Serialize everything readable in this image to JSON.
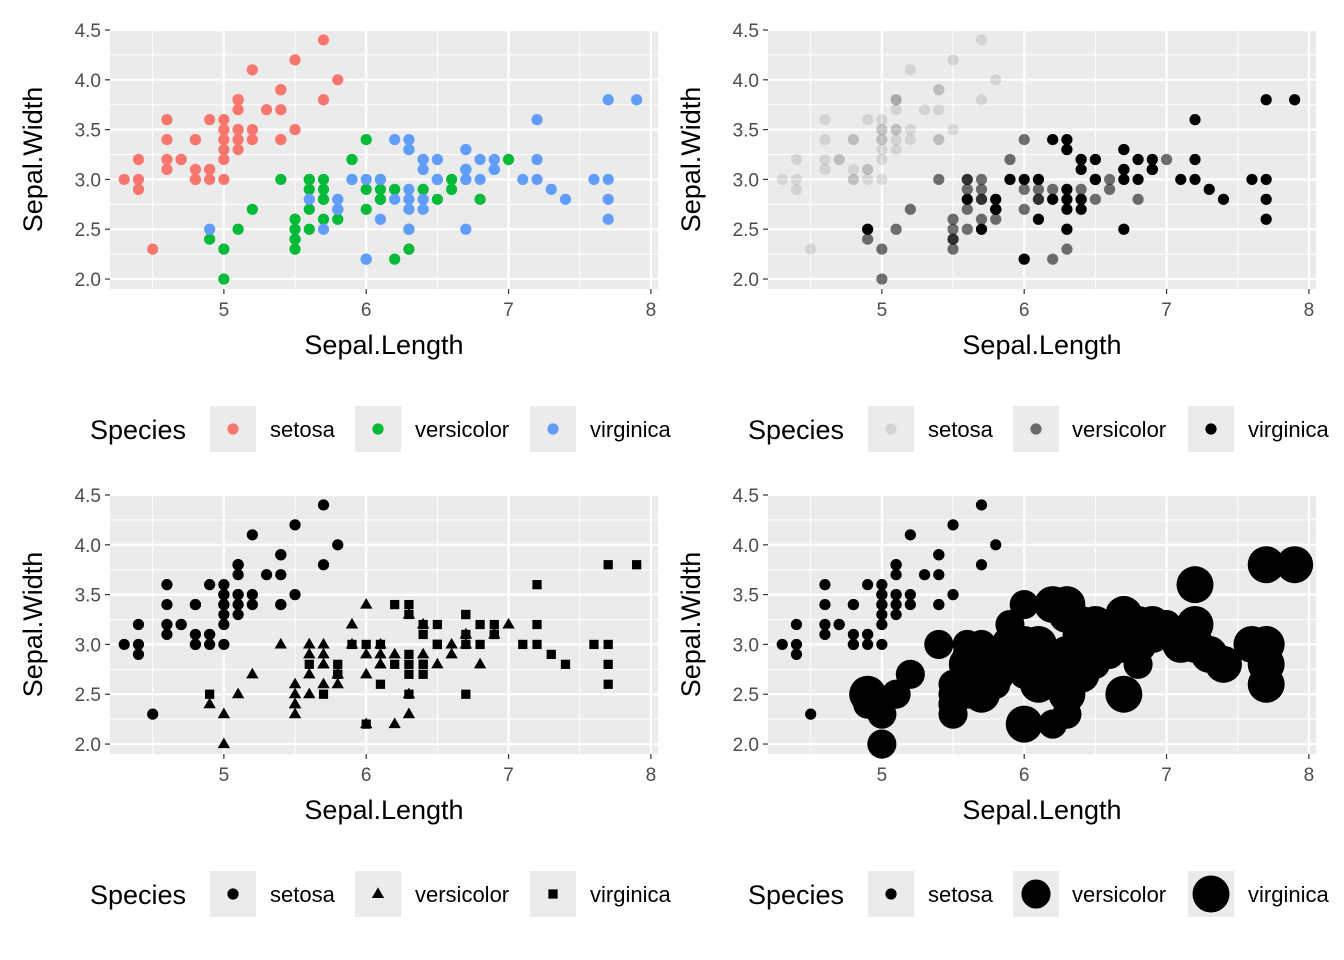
{
  "chart_data": [
    {
      "type": "scatter",
      "panel": "top-left",
      "aesthetic": "color",
      "xlabel": "Sepal.Length",
      "ylabel": "Sepal.Width",
      "xlim": [
        4.2,
        8.05
      ],
      "ylim": [
        1.9,
        4.5
      ],
      "x_ticks": [
        "5",
        "6",
        "7",
        "8"
      ],
      "y_ticks": [
        "2.0",
        "2.5",
        "3.0",
        "3.5",
        "4.0",
        "4.5"
      ],
      "grid": true,
      "legend": {
        "title": "Species",
        "position": "bottom",
        "entries": [
          "setosa",
          "versicolor",
          "virginica"
        ]
      },
      "series_styles": [
        {
          "name": "setosa",
          "color": "#F8766D",
          "shape": "circle",
          "opacity": 1,
          "size": 1
        },
        {
          "name": "versicolor",
          "color": "#00BA38",
          "shape": "circle",
          "opacity": 1,
          "size": 1
        },
        {
          "name": "virginica",
          "color": "#619CFF",
          "shape": "circle",
          "opacity": 1,
          "size": 1
        }
      ]
    },
    {
      "type": "scatter",
      "panel": "top-right",
      "aesthetic": "alpha",
      "xlabel": "Sepal.Length",
      "ylabel": "Sepal.Width",
      "xlim": [
        4.2,
        8.05
      ],
      "ylim": [
        1.9,
        4.5
      ],
      "x_ticks": [
        "5",
        "6",
        "7",
        "8"
      ],
      "y_ticks": [
        "2.0",
        "2.5",
        "3.0",
        "3.5",
        "4.0",
        "4.5"
      ],
      "grid": true,
      "legend": {
        "title": "Species",
        "position": "bottom",
        "entries": [
          "setosa",
          "versicolor",
          "virginica"
        ]
      },
      "series_styles": [
        {
          "name": "setosa",
          "color": "#000000",
          "shape": "circle",
          "opacity": 0.1,
          "size": 1
        },
        {
          "name": "versicolor",
          "color": "#000000",
          "shape": "circle",
          "opacity": 0.55,
          "size": 1
        },
        {
          "name": "virginica",
          "color": "#000000",
          "shape": "circle",
          "opacity": 1,
          "size": 1
        }
      ]
    },
    {
      "type": "scatter",
      "panel": "bottom-left",
      "aesthetic": "shape",
      "xlabel": "Sepal.Length",
      "ylabel": "Sepal.Width",
      "xlim": [
        4.2,
        8.05
      ],
      "ylim": [
        1.9,
        4.5
      ],
      "x_ticks": [
        "5",
        "6",
        "7",
        "8"
      ],
      "y_ticks": [
        "2.0",
        "2.5",
        "3.0",
        "3.5",
        "4.0",
        "4.5"
      ],
      "grid": true,
      "legend": {
        "title": "Species",
        "position": "bottom",
        "entries": [
          "setosa",
          "versicolor",
          "virginica"
        ]
      },
      "series_styles": [
        {
          "name": "setosa",
          "color": "#000000",
          "shape": "circle",
          "opacity": 1,
          "size": 1
        },
        {
          "name": "versicolor",
          "color": "#000000",
          "shape": "triangle",
          "opacity": 1,
          "size": 1
        },
        {
          "name": "virginica",
          "color": "#000000",
          "shape": "square",
          "opacity": 1,
          "size": 1
        }
      ]
    },
    {
      "type": "scatter",
      "panel": "bottom-right",
      "aesthetic": "size",
      "xlabel": "Sepal.Length",
      "ylabel": "Sepal.Width",
      "xlim": [
        4.2,
        8.05
      ],
      "ylim": [
        1.9,
        4.5
      ],
      "x_ticks": [
        "5",
        "6",
        "7",
        "8"
      ],
      "y_ticks": [
        "2.0",
        "2.5",
        "3.0",
        "3.5",
        "4.0",
        "4.5"
      ],
      "grid": true,
      "legend": {
        "title": "Species",
        "position": "bottom",
        "entries": [
          "setosa",
          "versicolor",
          "virginica"
        ]
      },
      "series_styles": [
        {
          "name": "setosa",
          "color": "#000000",
          "shape": "circle",
          "opacity": 1,
          "size": 1
        },
        {
          "name": "versicolor",
          "color": "#000000",
          "shape": "circle",
          "opacity": 1,
          "size": 2.6
        },
        {
          "name": "virginica",
          "color": "#000000",
          "shape": "circle",
          "opacity": 1,
          "size": 3.3
        }
      ]
    }
  ],
  "series": [
    {
      "name": "setosa",
      "points": [
        [
          5.1,
          3.5
        ],
        [
          4.9,
          3.0
        ],
        [
          4.7,
          3.2
        ],
        [
          4.6,
          3.1
        ],
        [
          5.0,
          3.6
        ],
        [
          5.4,
          3.9
        ],
        [
          4.6,
          3.4
        ],
        [
          5.0,
          3.4
        ],
        [
          4.4,
          2.9
        ],
        [
          4.9,
          3.1
        ],
        [
          5.4,
          3.7
        ],
        [
          4.8,
          3.4
        ],
        [
          4.8,
          3.0
        ],
        [
          4.3,
          3.0
        ],
        [
          5.8,
          4.0
        ],
        [
          5.7,
          4.4
        ],
        [
          5.4,
          3.9
        ],
        [
          5.1,
          3.5
        ],
        [
          5.7,
          3.8
        ],
        [
          5.1,
          3.8
        ],
        [
          5.4,
          3.4
        ],
        [
          5.1,
          3.7
        ],
        [
          4.6,
          3.6
        ],
        [
          5.1,
          3.3
        ],
        [
          4.8,
          3.4
        ],
        [
          5.0,
          3.0
        ],
        [
          5.0,
          3.4
        ],
        [
          5.2,
          3.5
        ],
        [
          5.2,
          3.4
        ],
        [
          4.7,
          3.2
        ],
        [
          4.8,
          3.1
        ],
        [
          5.4,
          3.4
        ],
        [
          5.2,
          4.1
        ],
        [
          5.5,
          4.2
        ],
        [
          4.9,
          3.1
        ],
        [
          5.0,
          3.2
        ],
        [
          5.5,
          3.5
        ],
        [
          4.9,
          3.6
        ],
        [
          4.4,
          3.0
        ],
        [
          5.1,
          3.4
        ],
        [
          5.0,
          3.5
        ],
        [
          4.5,
          2.3
        ],
        [
          4.4,
          3.2
        ],
        [
          5.0,
          3.5
        ],
        [
          5.1,
          3.8
        ],
        [
          4.8,
          3.0
        ],
        [
          5.1,
          3.8
        ],
        [
          4.6,
          3.2
        ],
        [
          5.3,
          3.7
        ],
        [
          5.0,
          3.3
        ]
      ]
    },
    {
      "name": "versicolor",
      "points": [
        [
          7.0,
          3.2
        ],
        [
          6.4,
          3.2
        ],
        [
          6.9,
          3.1
        ],
        [
          5.5,
          2.3
        ],
        [
          6.5,
          2.8
        ],
        [
          5.7,
          2.8
        ],
        [
          6.3,
          3.3
        ],
        [
          4.9,
          2.4
        ],
        [
          6.6,
          2.9
        ],
        [
          5.2,
          2.7
        ],
        [
          5.0,
          2.0
        ],
        [
          5.9,
          3.0
        ],
        [
          6.0,
          2.2
        ],
        [
          6.1,
          2.9
        ],
        [
          5.6,
          2.9
        ],
        [
          6.7,
          3.1
        ],
        [
          5.6,
          3.0
        ],
        [
          5.8,
          2.7
        ],
        [
          6.2,
          2.2
        ],
        [
          5.6,
          2.5
        ],
        [
          5.9,
          3.2
        ],
        [
          6.1,
          2.8
        ],
        [
          6.3,
          2.5
        ],
        [
          6.1,
          2.8
        ],
        [
          6.4,
          2.9
        ],
        [
          6.6,
          3.0
        ],
        [
          6.8,
          2.8
        ],
        [
          6.7,
          3.0
        ],
        [
          6.0,
          2.9
        ],
        [
          5.7,
          2.6
        ],
        [
          5.5,
          2.4
        ],
        [
          5.5,
          2.4
        ],
        [
          5.8,
          2.7
        ],
        [
          6.0,
          2.7
        ],
        [
          5.4,
          3.0
        ],
        [
          6.0,
          3.4
        ],
        [
          6.7,
          3.1
        ],
        [
          6.3,
          2.3
        ],
        [
          5.6,
          3.0
        ],
        [
          5.5,
          2.5
        ],
        [
          5.5,
          2.6
        ],
        [
          6.1,
          3.0
        ],
        [
          5.8,
          2.6
        ],
        [
          5.0,
          2.3
        ],
        [
          5.6,
          2.7
        ],
        [
          5.7,
          3.0
        ],
        [
          5.7,
          2.9
        ],
        [
          6.2,
          2.9
        ],
        [
          5.1,
          2.5
        ],
        [
          5.7,
          2.8
        ]
      ]
    },
    {
      "name": "virginica",
      "points": [
        [
          6.3,
          3.3
        ],
        [
          5.8,
          2.7
        ],
        [
          7.1,
          3.0
        ],
        [
          6.3,
          2.9
        ],
        [
          6.5,
          3.0
        ],
        [
          7.6,
          3.0
        ],
        [
          4.9,
          2.5
        ],
        [
          7.3,
          2.9
        ],
        [
          6.7,
          2.5
        ],
        [
          7.2,
          3.6
        ],
        [
          6.5,
          3.2
        ],
        [
          6.4,
          2.7
        ],
        [
          6.8,
          3.0
        ],
        [
          5.7,
          2.5
        ],
        [
          5.8,
          2.8
        ],
        [
          6.4,
          3.2
        ],
        [
          6.5,
          3.0
        ],
        [
          7.7,
          3.8
        ],
        [
          7.7,
          2.6
        ],
        [
          6.0,
          2.2
        ],
        [
          6.9,
          3.2
        ],
        [
          5.6,
          2.8
        ],
        [
          7.7,
          2.8
        ],
        [
          6.3,
          2.7
        ],
        [
          6.7,
          3.3
        ],
        [
          7.2,
          3.2
        ],
        [
          6.2,
          2.8
        ],
        [
          6.1,
          3.0
        ],
        [
          6.4,
          2.8
        ],
        [
          7.2,
          3.0
        ],
        [
          7.4,
          2.8
        ],
        [
          7.9,
          3.8
        ],
        [
          6.4,
          2.8
        ],
        [
          6.3,
          2.8
        ],
        [
          6.1,
          2.6
        ],
        [
          7.7,
          3.0
        ],
        [
          6.3,
          3.4
        ],
        [
          6.4,
          3.1
        ],
        [
          6.0,
          3.0
        ],
        [
          6.9,
          3.1
        ],
        [
          6.7,
          3.1
        ],
        [
          6.9,
          3.1
        ],
        [
          5.8,
          2.7
        ],
        [
          6.8,
          3.2
        ],
        [
          6.7,
          3.3
        ],
        [
          6.7,
          3.0
        ],
        [
          6.3,
          2.5
        ],
        [
          6.5,
          3.0
        ],
        [
          6.2,
          3.4
        ],
        [
          5.9,
          3.0
        ]
      ]
    }
  ]
}
